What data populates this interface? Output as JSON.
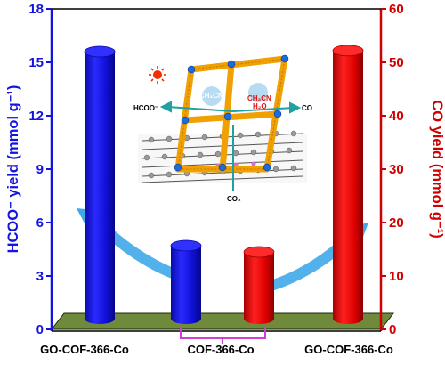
{
  "chart_data": {
    "type": "bar",
    "categories": [
      "GO-COF-366-Co",
      "COF-366-Co",
      "COF-366-Co",
      "GO-COF-366-Co"
    ],
    "category_labels": [
      "GO-COF-366-Co",
      "COF-366-Co",
      "GO-COF-366-Co"
    ],
    "series": [
      {
        "name": "HCOO⁻ yield",
        "axis": "left",
        "color": "#1414e0",
        "bars": [
          {
            "category_index": 0,
            "value": 15.6
          },
          {
            "category_index": 1,
            "value": 4.7
          }
        ]
      },
      {
        "name": "CO yield",
        "axis": "right",
        "color": "#e01414",
        "bars": [
          {
            "category_index": 2,
            "value": 14.5
          },
          {
            "category_index": 3,
            "value": 52.2
          }
        ]
      }
    ],
    "y_left": {
      "label": "HCOO⁻ yield (mmol g⁻¹)",
      "ylim": [
        0,
        18
      ],
      "ticks": [
        "0",
        "3",
        "6",
        "9",
        "12",
        "15",
        "18"
      ],
      "color": "#1414e0"
    },
    "y_right": {
      "label": "CO yield (mmol g⁻¹)",
      "ylim": [
        0,
        60
      ],
      "ticks": [
        "0",
        "10",
        "20",
        "30",
        "40",
        "50",
        "60"
      ],
      "color": "#d10000"
    },
    "grid": false,
    "legend": "none"
  },
  "inset": {
    "labels": {
      "hcoo": "HCOO⁻",
      "co": "CO",
      "co2": "CO₂",
      "ch3cn_left": "CH₃CN",
      "ch3cn_right": "CH₃CN",
      "h2o": "H₂O"
    }
  },
  "colors": {
    "floor": "#6e8a3a",
    "bracket": "#d040d0",
    "arrow": "#3fa9e8"
  }
}
